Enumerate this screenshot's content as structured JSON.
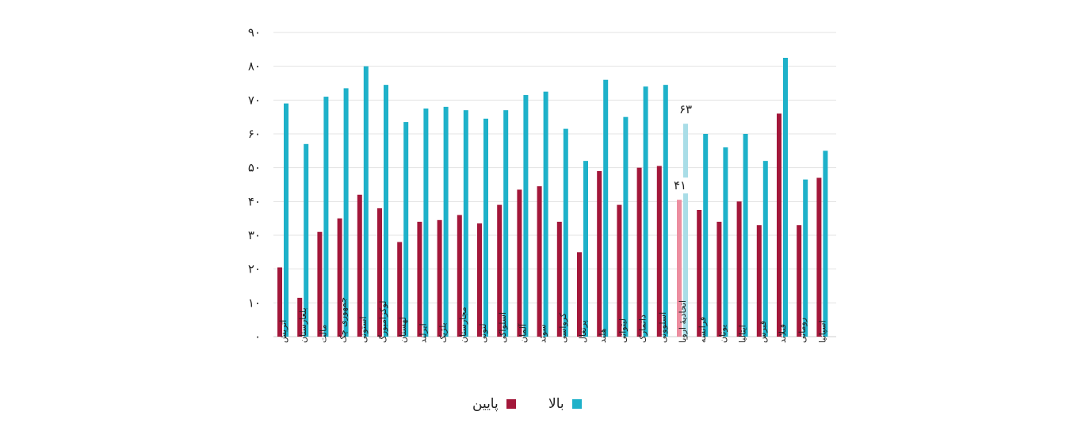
{
  "chart_data": {
    "type": "bar",
    "y_ticks": [
      "۰",
      "۱۰",
      "۲۰",
      "۳۰",
      "۴۰",
      "۵۰",
      "۶۰",
      "۷۰",
      "۸۰",
      "۹۰"
    ],
    "ylim": [
      0,
      90
    ],
    "grid": true,
    "legend_position": "bottom",
    "categories": [
      "اتریش",
      "بلغارستان",
      "مالت",
      "جمهوری چک",
      "استونی",
      "لوکزامبورگ",
      "لهستان",
      "ایرلند",
      "بلژیک",
      "مجارستان",
      "لتونی",
      "اسلواکی",
      "آلمان",
      "سوئد",
      "کرواسی",
      "پرتغال",
      "هلند",
      "لیتوانی",
      "دانمارک",
      "اسلوونی",
      "اتحادیهٔ اروپا",
      "فرانسه",
      "یونان",
      "ایتالیا",
      "قبرس",
      "فنلاند",
      "رومانی",
      "اسپانیا"
    ],
    "series": [
      {
        "name": "پایین",
        "color": "#a3173a",
        "values": [
          20.5,
          11.5,
          31,
          35,
          42,
          38,
          28,
          34,
          34.5,
          36,
          33.5,
          39,
          43.5,
          44.5,
          34,
          25,
          49,
          39,
          50,
          50.5,
          40.5,
          37.5,
          34,
          40,
          33,
          66,
          33,
          47
        ]
      },
      {
        "name": "بالا",
        "color": "#1eb1c9",
        "values": [
          69,
          57,
          71,
          73.5,
          80,
          74.5,
          63.5,
          67.5,
          68,
          67,
          64.5,
          67,
          71.5,
          72.5,
          61.5,
          52,
          76,
          65,
          74,
          74.5,
          63,
          60,
          56,
          60,
          52,
          82.5,
          46.5,
          55
        ]
      }
    ],
    "highlight": {
      "category_index": 20,
      "labels": [
        "۴۱",
        "۶۳"
      ],
      "low_color": "#ec8ea0",
      "high_color": "#a9dde7"
    }
  }
}
